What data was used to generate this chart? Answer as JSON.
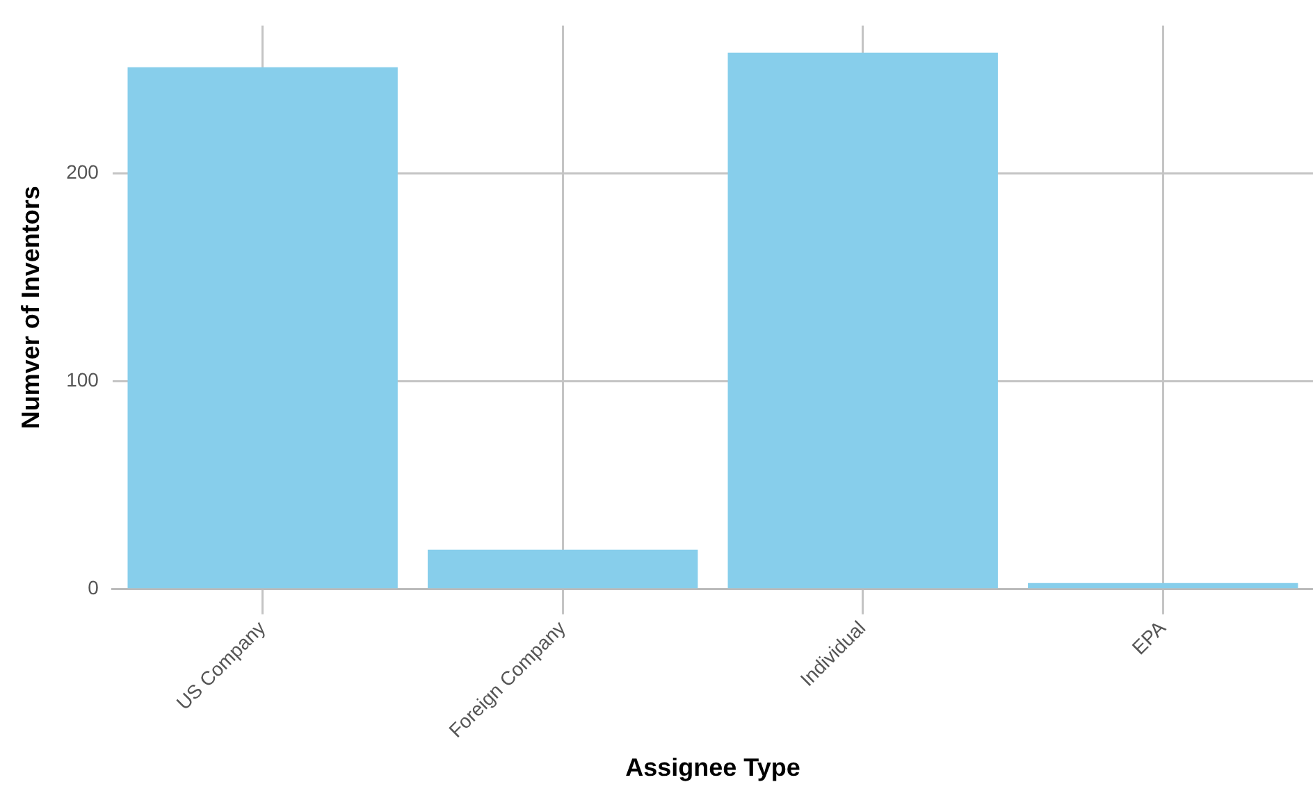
{
  "chart_data": {
    "type": "bar",
    "xlabel": "Assignee Type",
    "ylabel": "Numver of Inventors",
    "categories": [
      "US Company",
      "Foreign Company",
      "Individual",
      "EPA"
    ],
    "values": [
      251,
      19,
      258,
      3
    ],
    "color": "#87ceeb",
    "ylim": [
      0,
      271
    ],
    "yticks": [
      0,
      100,
      200
    ],
    "grid": true
  }
}
